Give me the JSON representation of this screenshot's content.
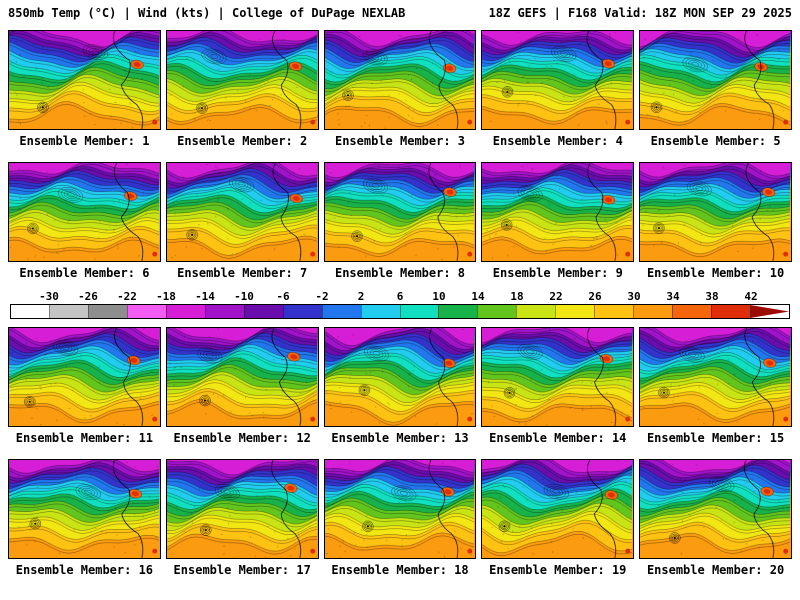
{
  "header": {
    "left": "850mb Temp (°C) | Wind (kts) | College of DuPage NEXLAB",
    "right": "18Z GEFS | F168 Valid: 18Z MON SEP 29 2025"
  },
  "panels": [
    {
      "member": 1,
      "label": "Ensemble Member: 1"
    },
    {
      "member": 2,
      "label": "Ensemble Member: 2"
    },
    {
      "member": 3,
      "label": "Ensemble Member: 3"
    },
    {
      "member": 4,
      "label": "Ensemble Member: 4"
    },
    {
      "member": 5,
      "label": "Ensemble Member: 5"
    },
    {
      "member": 6,
      "label": "Ensemble Member: 6"
    },
    {
      "member": 7,
      "label": "Ensemble Member: 7"
    },
    {
      "member": 8,
      "label": "Ensemble Member: 8"
    },
    {
      "member": 9,
      "label": "Ensemble Member: 9"
    },
    {
      "member": 10,
      "label": "Ensemble Member: 10"
    },
    {
      "member": 11,
      "label": "Ensemble Member: 11"
    },
    {
      "member": 12,
      "label": "Ensemble Member: 12"
    },
    {
      "member": 13,
      "label": "Ensemble Member: 13"
    },
    {
      "member": 14,
      "label": "Ensemble Member: 14"
    },
    {
      "member": 15,
      "label": "Ensemble Member: 15"
    },
    {
      "member": 16,
      "label": "Ensemble Member: 16"
    },
    {
      "member": 17,
      "label": "Ensemble Member: 17"
    },
    {
      "member": 18,
      "label": "Ensemble Member: 18"
    },
    {
      "member": 19,
      "label": "Ensemble Member: 19"
    },
    {
      "member": 20,
      "label": "Ensemble Member: 20"
    }
  ],
  "colorbar": {
    "ticks": [
      "-30",
      "-26",
      "-22",
      "-18",
      "-14",
      "-10",
      "-6",
      "-2",
      "2",
      "6",
      "10",
      "14",
      "18",
      "22",
      "26",
      "30",
      "34",
      "38",
      "42"
    ],
    "colors": [
      "#ffffff",
      "#c4c4c4",
      "#8e8e8e",
      "#f25cf2",
      "#d51ed5",
      "#a013c8",
      "#6a0dad",
      "#3333cc",
      "#2277ee",
      "#22ccee",
      "#11e0c0",
      "#18b24b",
      "#62c51e",
      "#c8e414",
      "#f2e713",
      "#fec312",
      "#fb9b0f",
      "#f4650c",
      "#e02d0a",
      "#9c0b06"
    ]
  }
}
